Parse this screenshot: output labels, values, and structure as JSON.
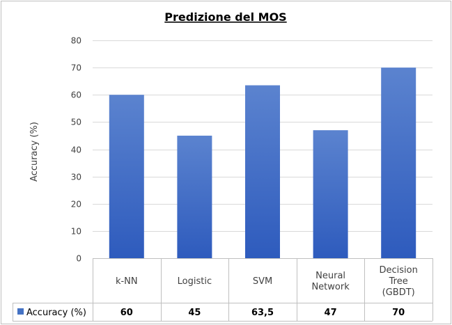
{
  "chart_data": {
    "type": "bar",
    "title": "Predizione del MOS",
    "ylabel": "Accuracy (%)",
    "xlabel": "",
    "ylim": [
      0,
      80
    ],
    "yticks": [
      0,
      10,
      20,
      30,
      40,
      50,
      60,
      70,
      80
    ],
    "grid": true,
    "categories": [
      [
        "k-NN"
      ],
      [
        "Logistic"
      ],
      [
        "SVM"
      ],
      [
        "Neural",
        "Network"
      ],
      [
        "Decision",
        "Tree",
        "(GBDT)"
      ]
    ],
    "series": [
      {
        "name": "Accuracy (%)",
        "values": [
          60,
          45,
          63.5,
          47,
          70
        ],
        "value_labels": [
          "60",
          "45",
          "63,5",
          "47",
          "70"
        ],
        "color": "#4472c4"
      }
    ],
    "legend": "data table"
  }
}
